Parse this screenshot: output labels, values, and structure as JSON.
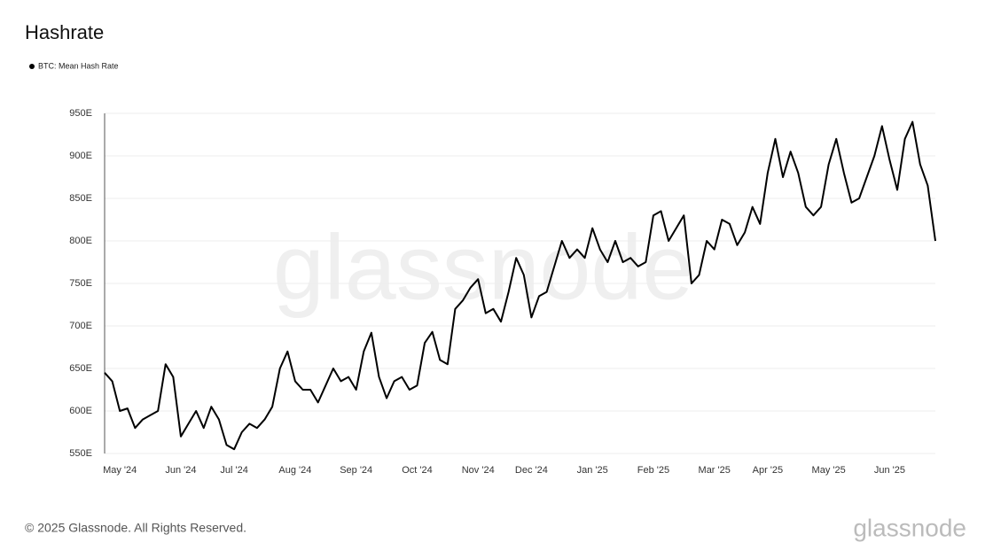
{
  "chart_data": {
    "type": "line",
    "title": "Hashrate",
    "categories": [
      null,
      null,
      "May '24",
      null,
      null,
      null,
      null,
      null,
      null,
      null,
      "Jun '24",
      null,
      null,
      null,
      null,
      null,
      null,
      "Jul '24",
      null,
      null,
      null,
      null,
      null,
      null,
      null,
      "Aug '24",
      null,
      null,
      null,
      null,
      null,
      null,
      null,
      "Sep '24",
      null,
      null,
      null,
      null,
      null,
      null,
      null,
      "Oct '24",
      null,
      null,
      null,
      null,
      null,
      null,
      null,
      "Nov '24",
      null,
      null,
      null,
      null,
      null,
      null,
      "Dec '24",
      null,
      null,
      null,
      null,
      null,
      null,
      null,
      "Jan '25",
      null,
      null,
      null,
      null,
      null,
      null,
      null,
      "Feb '25",
      null,
      null,
      null,
      null,
      null,
      null,
      null,
      "Mar '25",
      null,
      null,
      null,
      null,
      null,
      null,
      "Apr '25",
      null,
      null,
      null,
      null,
      null,
      null,
      null,
      "May '25",
      null,
      null,
      null,
      null,
      null,
      null,
      null,
      "Jun '25",
      null,
      null,
      null,
      null,
      null,
      null
    ],
    "series": [
      {
        "name": "BTC: Mean Hash Rate",
        "color": "#000000",
        "values": [
          645,
          635,
          600,
          603,
          580,
          590,
          595,
          600,
          655,
          640,
          570,
          585,
          600,
          580,
          605,
          590,
          560,
          555,
          575,
          585,
          580,
          590,
          605,
          650,
          670,
          635,
          625,
          625,
          610,
          630,
          650,
          635,
          640,
          625,
          670,
          692,
          640,
          615,
          635,
          640,
          625,
          630,
          680,
          693,
          660,
          655,
          720,
          730,
          745,
          755,
          715,
          720,
          705,
          740,
          780,
          760,
          710,
          735,
          740,
          770,
          800,
          780,
          790,
          780,
          815,
          790,
          775,
          800,
          775,
          780,
          770,
          775,
          830,
          835,
          800,
          815,
          830,
          750,
          760,
          800,
          790,
          825,
          820,
          795,
          810,
          840,
          820,
          880,
          920,
          875,
          905,
          880,
          840,
          830,
          840,
          890,
          920,
          880,
          845,
          850,
          875,
          900,
          935,
          895,
          860,
          920,
          940,
          890,
          865,
          800
        ]
      }
    ],
    "ylim": [
      550,
      950
    ],
    "yticks": [
      {
        "value": 550,
        "label": "550E"
      },
      {
        "value": 600,
        "label": "600E"
      },
      {
        "value": 650,
        "label": "650E"
      },
      {
        "value": 700,
        "label": "700E"
      },
      {
        "value": 750,
        "label": "750E"
      },
      {
        "value": 800,
        "label": "800E"
      },
      {
        "value": 850,
        "label": "850E"
      },
      {
        "value": 900,
        "label": "900E"
      },
      {
        "value": 950,
        "label": "950E"
      }
    ],
    "grid": true,
    "watermark": "glassnode",
    "footer": "© 2025 Glassnode. All Rights Reserved.",
    "logo": "glassnode"
  }
}
